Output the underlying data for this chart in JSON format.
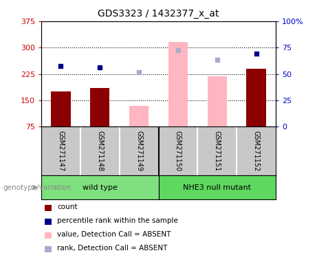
{
  "title": "GDS3323 / 1432377_x_at",
  "samples": [
    "GSM271147",
    "GSM271148",
    "GSM271149",
    "GSM271150",
    "GSM271151",
    "GSM271152"
  ],
  "group_labels": [
    "wild type",
    "NHE3 null mutant"
  ],
  "group_colors": [
    "#7EE07E",
    "#5ED85E"
  ],
  "bar_values": [
    175,
    185,
    135,
    315,
    218,
    240
  ],
  "bar_absent": [
    false,
    false,
    true,
    true,
    true,
    false
  ],
  "dot_values": [
    247,
    244,
    230,
    293,
    266,
    282
  ],
  "dot_absent": [
    false,
    false,
    true,
    true,
    true,
    false
  ],
  "ylim_left": [
    75,
    375
  ],
  "ylim_right": [
    0,
    100
  ],
  "yticks_left": [
    75,
    150,
    225,
    300,
    375
  ],
  "yticks_right": [
    0,
    25,
    50,
    75,
    100
  ],
  "grid_values": [
    150,
    225,
    300
  ],
  "ylabel_left_color": "#CC0000",
  "ylabel_right_color": "#0000CC",
  "left_tick_labels": [
    "75",
    "150",
    "225",
    "300",
    "375"
  ],
  "right_tick_labels": [
    "0",
    "25",
    "50",
    "75",
    "100%"
  ],
  "legend_items": [
    {
      "label": "count",
      "color": "#8B0000"
    },
    {
      "label": "percentile rank within the sample",
      "color": "#00008B"
    },
    {
      "label": "value, Detection Call = ABSENT",
      "color": "#FFB6C1"
    },
    {
      "label": "rank, Detection Call = ABSENT",
      "color": "#AAAACC"
    }
  ],
  "genotype_label": "genotype/variation",
  "background_color": "#FFFFFF",
  "sample_area_color": "#C8C8C8",
  "bar_color_present": "#8B0000",
  "bar_color_absent": "#FFB6C1",
  "dot_color_present": "#00008B",
  "dot_color_absent": "#AAAACC",
  "bar_width": 0.5
}
